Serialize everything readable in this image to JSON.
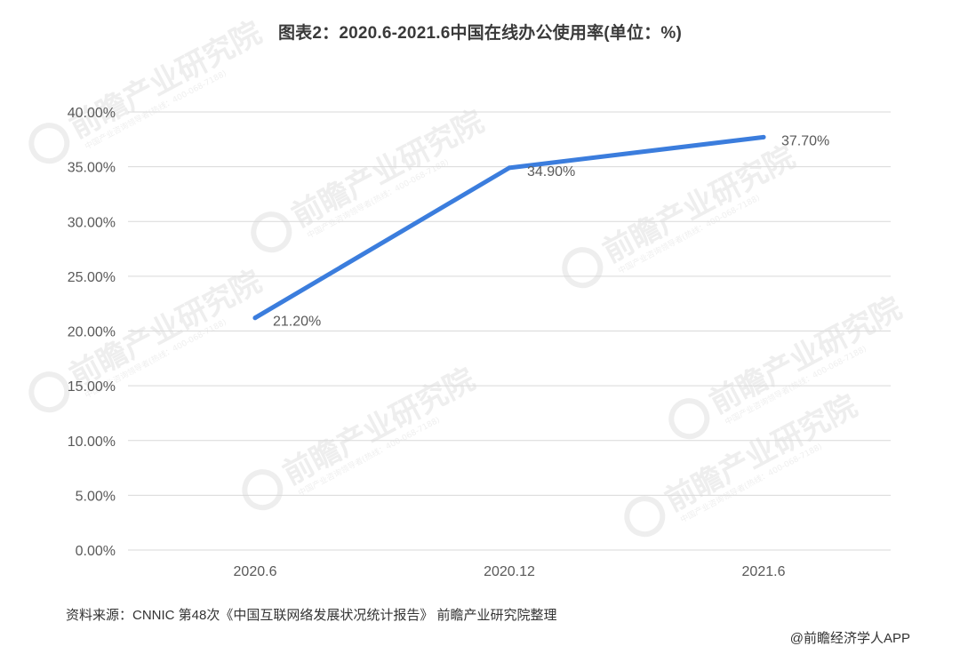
{
  "chart_data": {
    "type": "line",
    "title": "图表2：2020.6-2021.6中国在线办公使用率(单位：%)",
    "categories": [
      "2020.6",
      "2020.12",
      "2021.6"
    ],
    "series": [
      {
        "values": [
          21.2,
          34.9,
          37.7
        ],
        "data_labels": [
          "21.20%",
          "34.90%",
          "37.70%"
        ]
      }
    ],
    "y_ticks": [
      0,
      5,
      10,
      15,
      20,
      25,
      30,
      35,
      40
    ],
    "y_tick_labels": [
      "0.00%",
      "5.00%",
      "10.00%",
      "15.00%",
      "20.00%",
      "25.00%",
      "30.00%",
      "35.00%",
      "40.00%"
    ],
    "ylim": [
      0,
      40
    ],
    "grid": true,
    "legend": "none",
    "line_color": "#3b7ddd"
  },
  "footer": {
    "source": "资料来源：CNNIC 第48次《中国互联网络发展状况统计报告》 前瞻产业研究院整理",
    "brand": "@前瞻经济学人APP"
  },
  "watermark": {
    "main": "前瞻产业研究院",
    "sub": "中国产业咨询领导者(热线：400-068-7188)",
    "color": "#eeeeee",
    "icon": "qianzhan-logo-icon"
  }
}
